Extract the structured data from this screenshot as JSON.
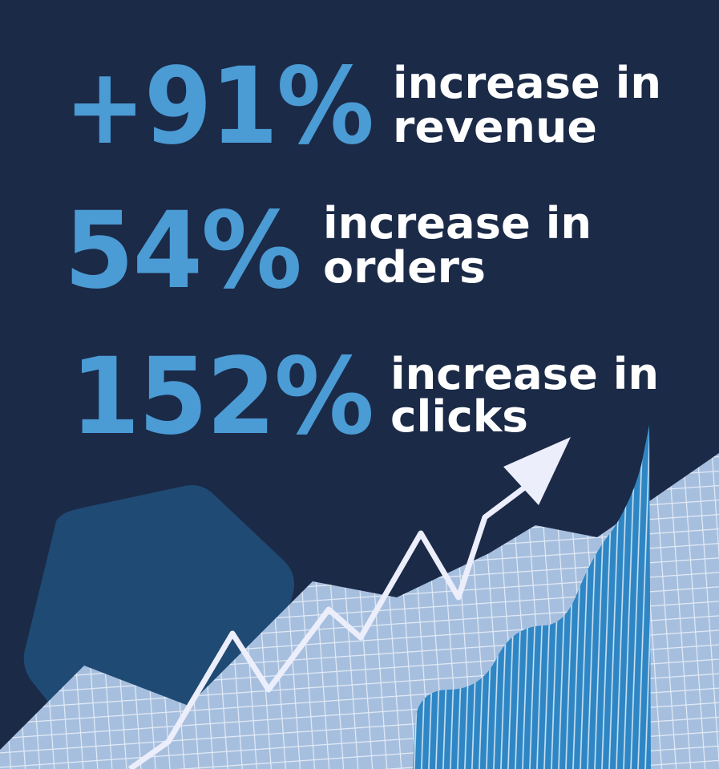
{
  "stats": [
    {
      "value": "+91%",
      "label_lines": [
        "increase in",
        "revenue"
      ]
    },
    {
      "value": "54%",
      "label_lines": [
        "increase in",
        "orders"
      ]
    },
    {
      "value": "152%",
      "label_lines": [
        "increase in",
        "clicks"
      ]
    }
  ]
}
